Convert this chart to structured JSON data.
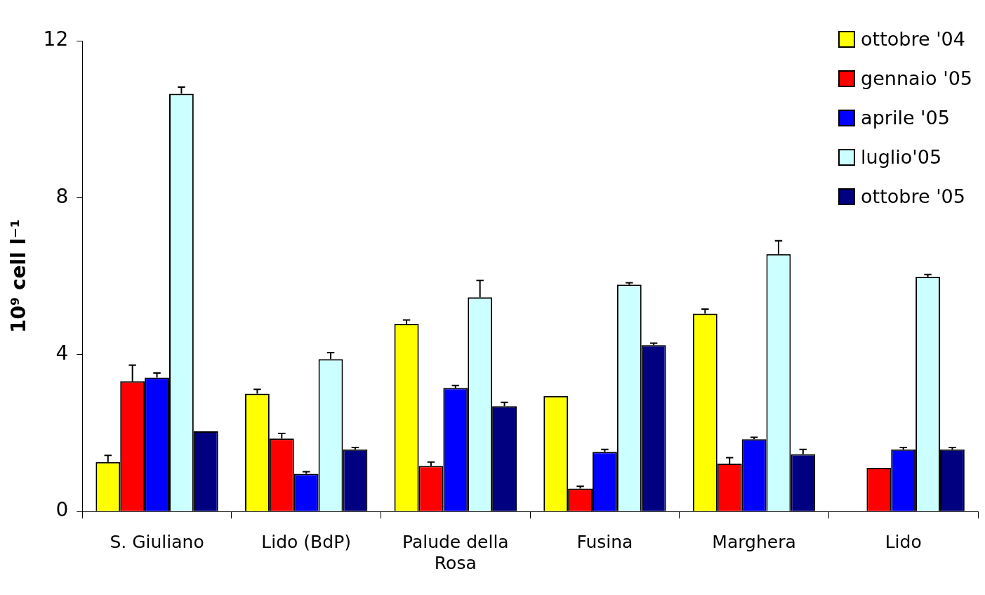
{
  "chart_data": {
    "type": "bar",
    "categories": [
      "S. Giuliano",
      "Lido (BdP)",
      "Palude della Rosa",
      "Fusina",
      "Marghera",
      "Lido"
    ],
    "ylabel": "10⁹ cell l⁻¹",
    "ylim": [
      0,
      12
    ],
    "yticks": [
      0,
      4,
      8,
      12
    ],
    "grid": false,
    "legend": "top right",
    "series": [
      {
        "name": "ottobre '04",
        "color": "#ffff00",
        "values": [
          1.26,
          3.0,
          4.78,
          2.94,
          5.04,
          null
        ],
        "errors": [
          [
            1.26,
            1.43
          ],
          [
            3.0,
            3.11
          ],
          [
            4.78,
            4.88
          ],
          null,
          [
            5.04,
            5.16
          ],
          null
        ]
      },
      {
        "name": "gennaio '05",
        "color": "#ff0000",
        "values": [
          3.32,
          1.86,
          1.16,
          0.58,
          1.22,
          1.11
        ],
        "errors": [
          [
            3.32,
            3.73
          ],
          [
            1.86,
            1.99
          ],
          [
            1.16,
            1.26
          ],
          [
            0.58,
            0.64
          ],
          [
            1.22,
            1.37
          ],
          null
        ]
      },
      {
        "name": "aprile '05",
        "color": "#0000ff",
        "values": [
          3.41,
          0.96,
          3.15,
          1.52,
          1.84,
          1.58
        ],
        "errors": [
          [
            3.41,
            3.53
          ],
          [
            0.96,
            1.01
          ],
          [
            3.15,
            3.21
          ],
          [
            1.52,
            1.58
          ],
          [
            1.84,
            1.89
          ],
          [
            1.58,
            1.63
          ]
        ]
      },
      {
        "name": "luglio'05",
        "color": "#ccffff",
        "values": [
          10.65,
          3.88,
          5.46,
          5.78,
          6.56,
          5.98
        ],
        "errors": [
          [
            10.65,
            10.82
          ],
          [
            3.88,
            4.05
          ],
          [
            5.46,
            5.89
          ],
          [
            5.78,
            5.83
          ],
          [
            6.56,
            6.9
          ],
          [
            5.98,
            6.04
          ]
        ]
      },
      {
        "name": "ottobre '05",
        "color": "#000080",
        "values": [
          2.04,
          1.58,
          2.68,
          4.24,
          1.46,
          1.58
        ],
        "errors": [
          null,
          [
            1.58,
            1.63
          ],
          [
            2.68,
            2.78
          ],
          [
            4.24,
            4.29
          ],
          [
            1.46,
            1.58
          ],
          [
            1.58,
            1.63
          ]
        ]
      }
    ]
  }
}
